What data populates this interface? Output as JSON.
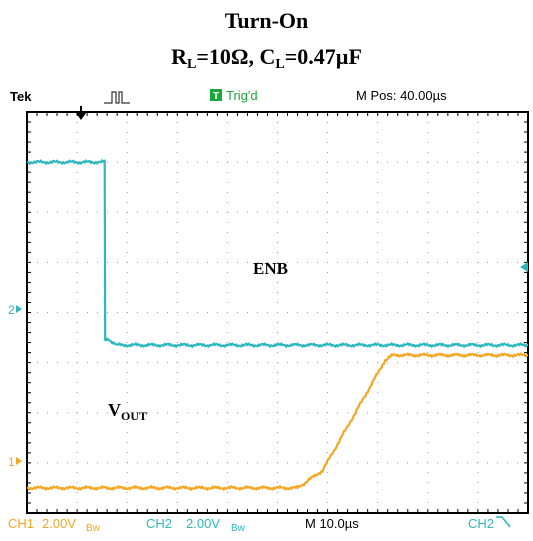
{
  "title": {
    "line1": "Turn-On",
    "line2_r": "R",
    "line2_r_sub": "L",
    "line2_r_val": "=10Ω, ",
    "line2_c": "C",
    "line2_c_sub": "L",
    "line2_c_val": "=0.47µF"
  },
  "scope": {
    "brand": "Tek",
    "trig_status": "Trig'd",
    "mpos": "M Pos: 40.00µs",
    "ch1_label": "CH1",
    "ch1_scale": "2.00V",
    "ch1_bw": "Bw",
    "ch2_label": "CH2",
    "ch2_scale": "2.00V",
    "ch2_bw": "Bw",
    "timebase": "M 10.0µs",
    "trig_source": "CH2",
    "ch1_marker": "1",
    "ch2_marker": "2"
  },
  "annotations": {
    "enb": "ENB",
    "vout_main": "V",
    "vout_sub": "OUT"
  },
  "colors": {
    "ch1": "#F5A623",
    "ch2": "#2FB7BE",
    "trig": "#1AA83A",
    "grid_dot": "#9a9a9a"
  },
  "chart_data": {
    "type": "line",
    "title": "Turn-On R_L=10Ω, C_L=0.47µF",
    "x_unit": "divisions (10.0µs/div)",
    "y_unit": "divisions (2.00V/div)",
    "xlim": [
      0,
      10
    ],
    "ylim": [
      0,
      8
    ],
    "series": [
      {
        "name": "ENB",
        "channel": "CH2",
        "x": [
          0,
          1.55,
          1.56,
          1.65,
          1.8,
          10
        ],
        "y": [
          7.0,
          7.0,
          3.45,
          3.45,
          3.35,
          3.35
        ]
      },
      {
        "name": "VOUT",
        "channel": "CH1",
        "x": [
          0,
          5.4,
          5.9,
          7.15,
          7.3,
          10
        ],
        "y": [
          0.5,
          0.5,
          0.85,
          3.05,
          3.15,
          3.15
        ]
      }
    ]
  }
}
